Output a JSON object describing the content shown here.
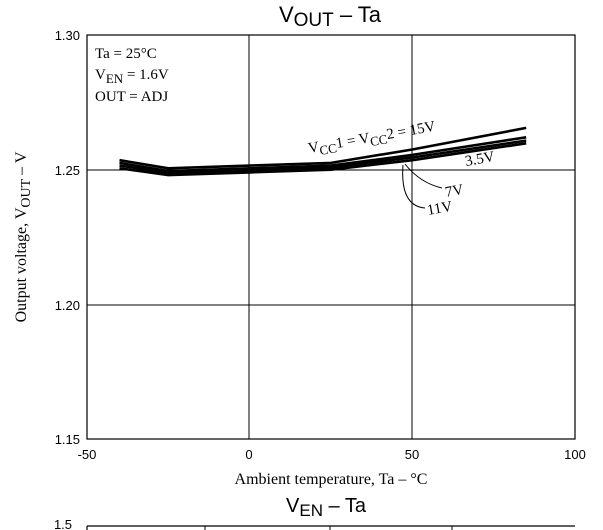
{
  "chart_data": [
    {
      "type": "line",
      "title_main": "V",
      "title_sub": "OUT",
      "title_rest": " – Ta",
      "xlabel": "Ambient temperature, Ta – °C",
      "ylabel_main": "Output voltage, V",
      "ylabel_sub": "OUT",
      "ylabel_rest": " – V",
      "xlim": [
        -50,
        100
      ],
      "ylim": [
        1.15,
        1.3
      ],
      "x_ticks": [
        "-50",
        "0",
        "50",
        "100"
      ],
      "y_ticks": [
        "1.15",
        "1.20",
        "1.25",
        "1.30"
      ],
      "grid": true,
      "conditions": {
        "ta": "Ta = 25°C",
        "ven_main": "V",
        "ven_sub": "EN",
        "ven_rest": " = 1.6V",
        "out": "OUT = ADJ"
      },
      "annotations": {
        "vcc_a": "V",
        "vcc_a_sub": "CC",
        "vcc_mid": "1 = V",
        "vcc_b_sub": "CC",
        "vcc_end": "2 = 15V",
        "v35": "3.5V",
        "v7": "7V",
        "v11": "11V"
      },
      "series": [
        {
          "label_ref": "15V",
          "x": [
            -40,
            -25,
            0,
            25,
            50,
            85
          ],
          "y": [
            1.2535,
            1.2505,
            1.2515,
            1.2525,
            1.2575,
            1.2655
          ]
        },
        {
          "label_ref": "3.5V",
          "x": [
            -40,
            -25,
            0,
            25,
            50,
            85
          ],
          "y": [
            1.2525,
            1.2495,
            1.2505,
            1.2515,
            1.2555,
            1.262
          ]
        },
        {
          "label_ref": "7V",
          "x": [
            -40,
            -25,
            0,
            25,
            50,
            85
          ],
          "y": [
            1.2515,
            1.2488,
            1.2498,
            1.2508,
            1.2545,
            1.2608
          ]
        },
        {
          "label_ref": "11V",
          "x": [
            -40,
            -25,
            0,
            25,
            50,
            85
          ],
          "y": [
            1.2505,
            1.248,
            1.249,
            1.25,
            1.2535,
            1.2598
          ]
        }
      ]
    },
    {
      "type": "line",
      "title_main": "V",
      "title_sub": "EN",
      "title_rest": " – Ta",
      "y_ticks": [
        "1.5"
      ]
    }
  ]
}
